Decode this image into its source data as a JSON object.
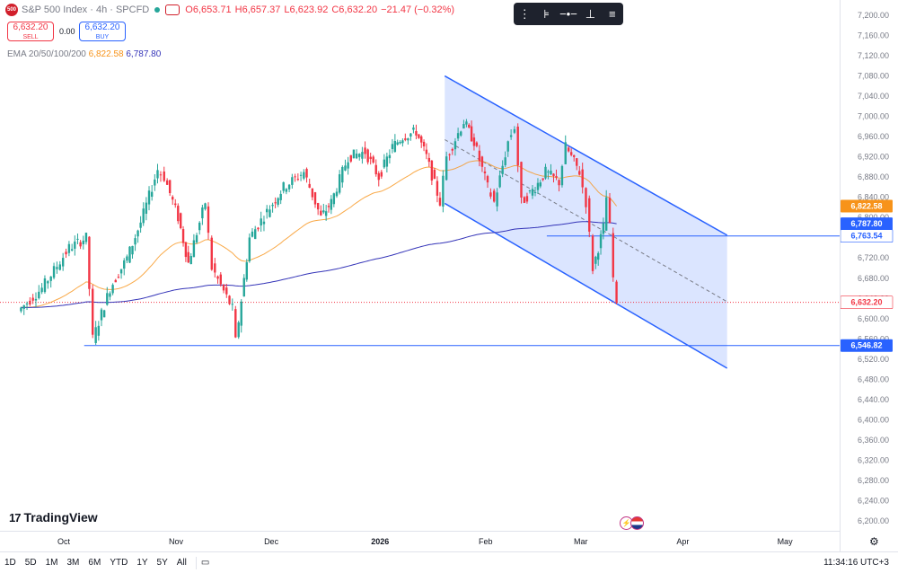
{
  "header": {
    "symbol_badge": "500",
    "title": "S&P 500 Index · 4h · SPCFD",
    "ohlc": {
      "open": "O6,653.71",
      "high": "H6,657.37",
      "low": "L6,623.92",
      "close": "C6,632.20",
      "change": "−21.47 (−0.32%)"
    }
  },
  "trade": {
    "sell_price": "6,632.20",
    "sell_label": "SELL",
    "spread": "0.00",
    "buy_price": "6,632.20",
    "buy_label": "BUY"
  },
  "ema": {
    "label": "EMA 20/50/100/200",
    "value1": "6,822.58",
    "value2": "6,787.80"
  },
  "toolbar": {
    "icons": [
      "drag-handle-icon",
      "fib-icon",
      "horizontal-ray-icon",
      "vertical-line-icon",
      "menu-lines-icon"
    ]
  },
  "branding": {
    "logo_mark": "17",
    "logo_text": "TradingView"
  },
  "bottom_bar": {
    "ranges": [
      "1D",
      "5D",
      "1M",
      "3M",
      "6M",
      "YTD",
      "1Y",
      "5Y",
      "All"
    ],
    "clock": "11:34:16 UTC+3"
  },
  "colors": {
    "bull": "#26a69a",
    "bear": "#f23645",
    "channel": "#2962ff",
    "ema_orange": "#f7931a",
    "ema_blue": "#3434b8"
  },
  "chart_data": {
    "type": "candlestick",
    "symbol": "S&P 500 Index",
    "interval": "4h",
    "ylim": [
      6180,
      7220
    ],
    "y_ticks": [
      6200,
      6240,
      6280,
      6320,
      6360,
      6400,
      6440,
      6480,
      6520,
      6560,
      6600,
      6640,
      6680,
      6720,
      6760,
      6800,
      6840,
      6880,
      6920,
      6960,
      7000,
      7040,
      7080,
      7120,
      7160,
      7200
    ],
    "x_ticks": [
      "Oct",
      "Nov",
      "Dec",
      "2026",
      "Feb",
      "Mar",
      "Apr",
      "May"
    ],
    "price_labels": [
      {
        "text": "6,822.58",
        "value": 6822.58,
        "color": "#f7931a",
        "textColor": "#ffffff"
      },
      {
        "text": "6,787.80",
        "value": 6787.8,
        "color": "#2962ff",
        "textColor": "#ffffff"
      },
      {
        "text": "6,763.54",
        "value": 6763.54,
        "color": "#ffffff",
        "textColor": "#2962ff"
      },
      {
        "text": "6,632.20",
        "value": 6632.2,
        "color": "#ffffff",
        "textColor": "#f23645"
      },
      {
        "text": "6,546.82",
        "value": 6546.82,
        "color": "#2962ff",
        "textColor": "#ffffff"
      }
    ],
    "horizontal_levels": [
      6763.54,
      6546.82
    ],
    "current_price": 6632.2,
    "channel": {
      "upper": [
        [
          "Jan 21",
          7080
        ],
        [
          "Apr 14",
          6765
        ]
      ],
      "lower": [
        [
          "Jan 21",
          6828
        ],
        [
          "Apr 14",
          6502
        ]
      ],
      "midline_dashed": true
    },
    "ema_20_last": 6822.58,
    "ema_200_last": 6787.8,
    "candle_waypoints": [
      [
        "Sep 18",
        6615
      ],
      [
        "Sep 25",
        6660
      ],
      [
        "Oct 3",
        6740
      ],
      [
        "Oct 8",
        6760
      ],
      [
        "Oct 10",
        6560
      ],
      [
        "Oct 15",
        6660
      ],
      [
        "Oct 20",
        6720
      ],
      [
        "Oct 24",
        6790
      ],
      [
        "Oct 29",
        6895
      ],
      [
        "Oct 31",
        6880
      ],
      [
        "Nov 4",
        6800
      ],
      [
        "Nov 7",
        6710
      ],
      [
        "Nov 12",
        6830
      ],
      [
        "Nov 14",
        6700
      ],
      [
        "Nov 20",
        6620
      ],
      [
        "Nov 21",
        6555
      ],
      [
        "Nov 25",
        6760
      ],
      [
        "Dec 1",
        6820
      ],
      [
        "Dec 5",
        6860
      ],
      [
        "Dec 11",
        6890
      ],
      [
        "Dec 16",
        6800
      ],
      [
        "Dec 19",
        6830
      ],
      [
        "Dec 24",
        6920
      ],
      [
        "Dec 29",
        6930
      ],
      [
        "Jan 2",
        6880
      ],
      [
        "Jan 6",
        6940
      ],
      [
        "Jan 9",
        6960
      ],
      [
        "Jan 13",
        6970
      ],
      [
        "Jan 16",
        6920
      ],
      [
        "Jan 20",
        6830
      ],
      [
        "Jan 22",
        6920
      ],
      [
        "Jan 27",
        6990
      ],
      [
        "Jan 30",
        6950
      ],
      [
        "Feb 3",
        6860
      ],
      [
        "Feb 5",
        6830
      ],
      [
        "Feb 9",
        6950
      ],
      [
        "Feb 11",
        6980
      ],
      [
        "Feb 13",
        6830
      ],
      [
        "Feb 17",
        6860
      ],
      [
        "Feb 20",
        6890
      ],
      [
        "Feb 24",
        6870
      ],
      [
        "Feb 26",
        6940
      ],
      [
        "Mar 2",
        6890
      ],
      [
        "Mar 4",
        6830
      ],
      [
        "Mar 6",
        6700
      ],
      [
        "Mar 9",
        6780
      ],
      [
        "Mar 10",
        6840
      ],
      [
        "Mar 11",
        6780
      ],
      [
        "Mar 12",
        6680
      ],
      [
        "Mar 13",
        6632
      ]
    ]
  }
}
